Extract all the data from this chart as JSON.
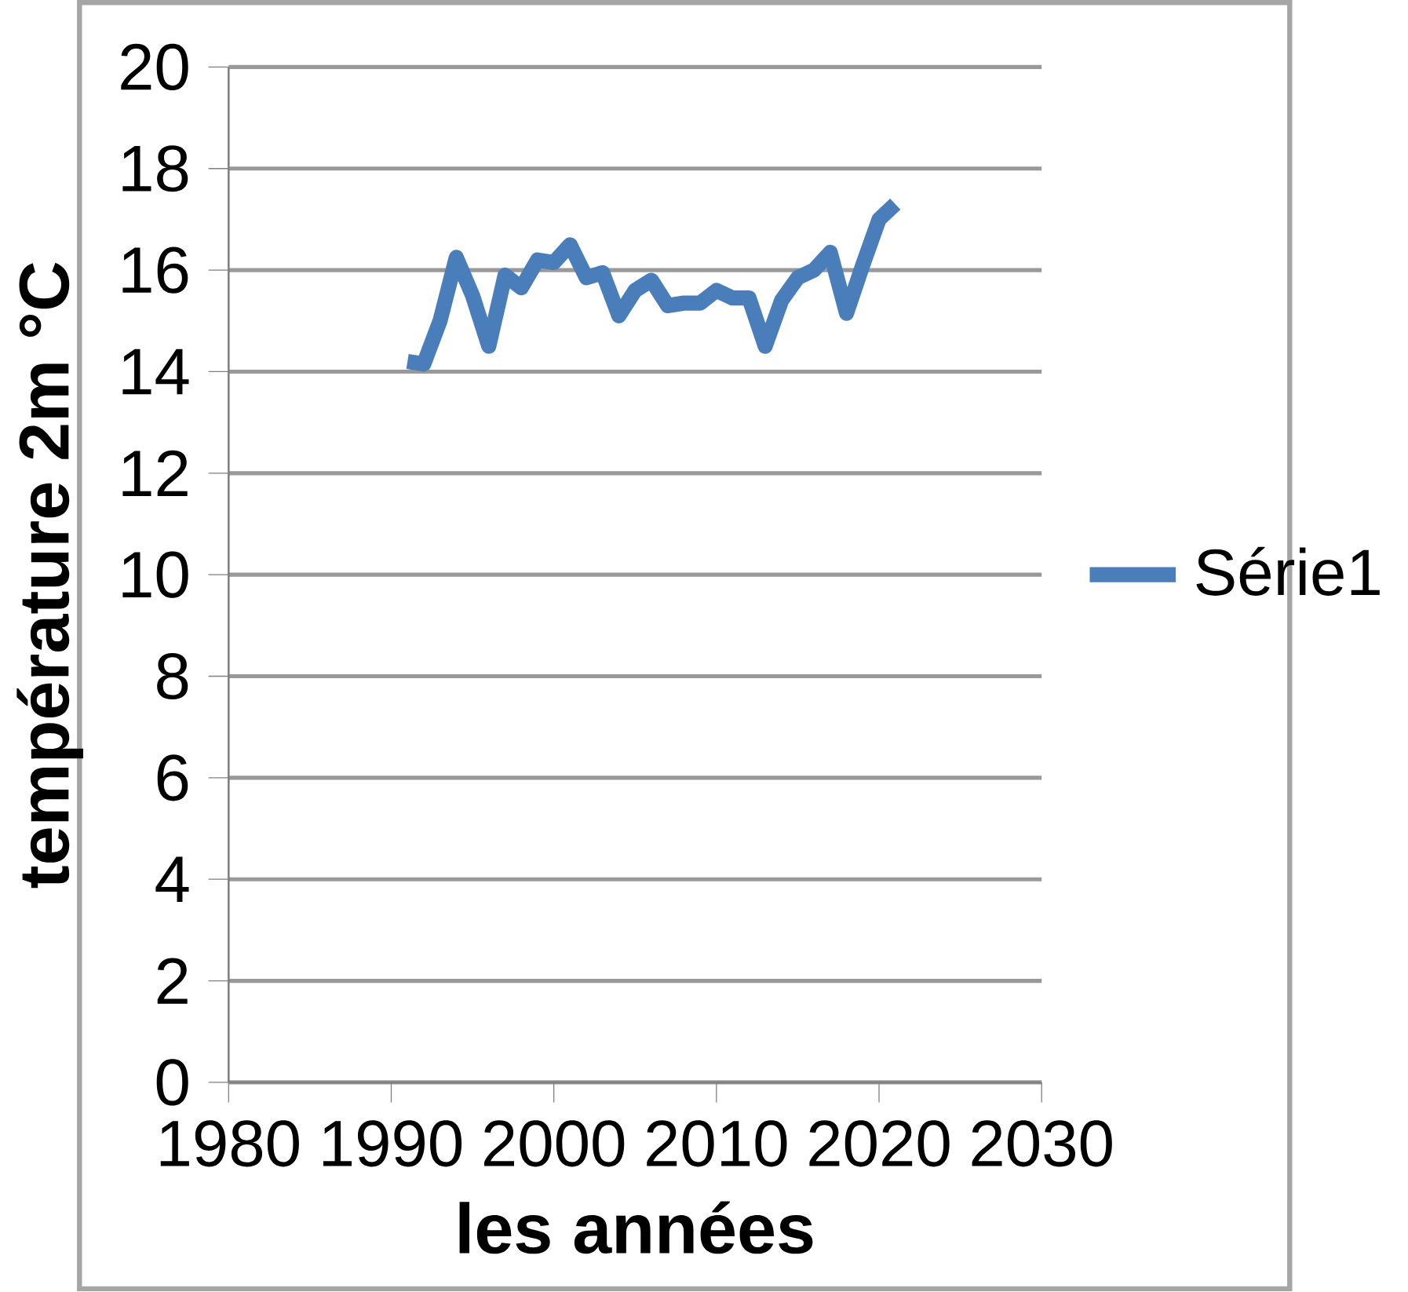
{
  "chart_data": {
    "type": "line",
    "xlabel": "les années",
    "ylabel": "température 2m °C",
    "xlim": [
      1980,
      2030
    ],
    "xticks": [
      1980,
      1990,
      2000,
      2010,
      2020,
      2030
    ],
    "ylim": [
      0,
      20
    ],
    "yticks": [
      0,
      2,
      4,
      6,
      8,
      10,
      12,
      14,
      16,
      18,
      20
    ],
    "grid": "y",
    "legend": "right",
    "marker": "none",
    "line_style": "solid",
    "series": [
      {
        "name": "Série1",
        "color": "#4a7ebb",
        "x": [
          1991,
          1992,
          1993,
          1994,
          1995,
          1996,
          1997,
          1998,
          1999,
          2000,
          2001,
          2002,
          2003,
          2004,
          2005,
          2006,
          2007,
          2008,
          2009,
          2010,
          2011,
          2012,
          2013,
          2014,
          2015,
          2016,
          2017,
          2018,
          2019,
          2020,
          2021
        ],
        "values": [
          14.2,
          14.15,
          15.0,
          16.25,
          15.5,
          14.5,
          15.9,
          15.65,
          16.2,
          16.15,
          16.5,
          15.85,
          15.95,
          15.1,
          15.6,
          15.8,
          15.3,
          15.35,
          15.35,
          15.6,
          15.45,
          15.45,
          14.5,
          15.4,
          15.85,
          16.0,
          16.35,
          15.15,
          16.1,
          17.0,
          17.3
        ]
      }
    ]
  }
}
